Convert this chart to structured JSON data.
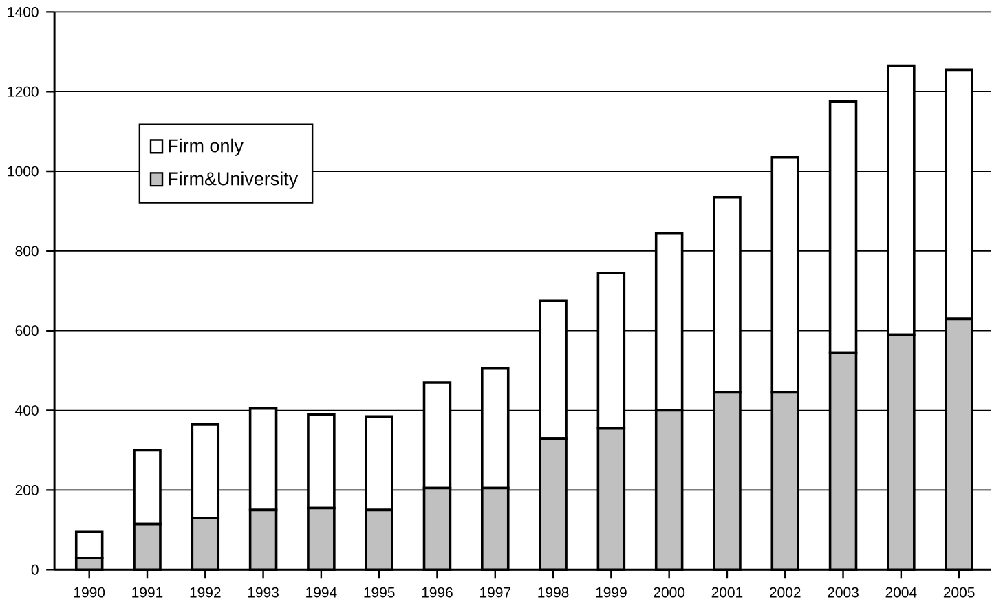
{
  "chart_data": {
    "type": "bar",
    "stacked": true,
    "categories": [
      "1990",
      "1991",
      "1992",
      "1993",
      "1994",
      "1995",
      "1996",
      "1997",
      "1998",
      "1999",
      "2000",
      "2001",
      "2002",
      "2003",
      "2004",
      "2005"
    ],
    "series": [
      {
        "name": "Firm&University",
        "color": "#c0c0c0",
        "values": [
          30,
          115,
          130,
          150,
          155,
          150,
          205,
          205,
          330,
          355,
          400,
          445,
          445,
          545,
          590,
          630
        ]
      },
      {
        "name": "Firm only",
        "color": "#ffffff",
        "values": [
          65,
          185,
          235,
          255,
          235,
          235,
          265,
          300,
          345,
          390,
          445,
          490,
          590,
          630,
          675,
          625
        ]
      }
    ],
    "ylim": [
      0,
      1400
    ],
    "yticks": [
      0,
      200,
      400,
      600,
      800,
      1000,
      1200,
      1400
    ],
    "grid": "y",
    "legend": "top left"
  }
}
